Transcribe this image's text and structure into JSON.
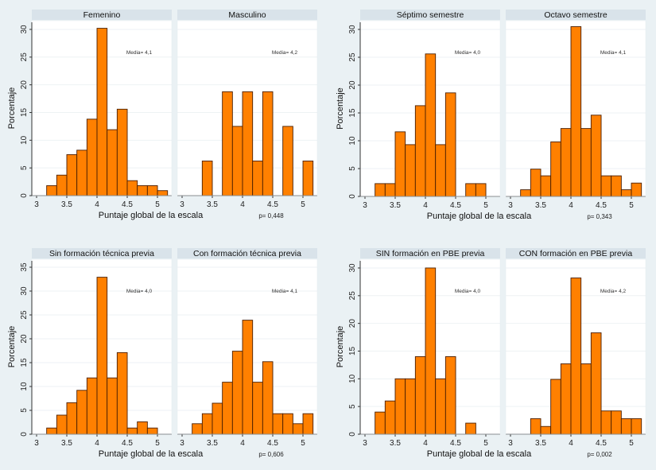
{
  "chart_data": [
    {
      "type": "bar",
      "group": "sexo",
      "ylabel": "Porcentaje",
      "xlabel": "Puntaje global de la escala",
      "ylim": [
        0,
        31
      ],
      "yticks": [
        0,
        5,
        10,
        15,
        20,
        25,
        30
      ],
      "xlim": [
        2.9,
        5.17
      ],
      "xticks": [
        "3",
        "3.5",
        "4",
        "4.5",
        "5"
      ],
      "grid": true,
      "bin_width": 0.1667,
      "p_value_label": "p= 0,448",
      "panels": [
        {
          "title": "Femenino",
          "media_label": "Media= 4,1",
          "bin_start": 3.1667,
          "values": [
            1.8,
            3.7,
            7.4,
            8.2,
            13.8,
            30.2,
            11.9,
            15.6,
            2.7,
            1.8,
            1.8,
            0.9
          ]
        },
        {
          "title": "Masculino",
          "media_label": "Media= 4,2",
          "bin_start": 3.3333,
          "values": [
            6.25,
            0,
            18.75,
            12.5,
            18.75,
            6.25,
            18.75,
            0,
            12.5,
            0,
            6.25
          ]
        }
      ]
    },
    {
      "type": "bar",
      "group": "semestre",
      "ylabel": "Porcentaje",
      "xlabel": "Puntaje global de la escala",
      "ylim": [
        0,
        31
      ],
      "yticks": [
        0,
        5,
        10,
        15,
        20,
        25,
        30
      ],
      "xlim": [
        2.9,
        5.17
      ],
      "xticks": [
        "3",
        "3.5",
        "4",
        "4.5",
        "5"
      ],
      "grid": true,
      "bin_width": 0.1667,
      "p_value_label": "p= 0,343",
      "panels": [
        {
          "title": "Séptimo semestre",
          "media_label": "Media= 4,0",
          "bin_start": 3.1667,
          "values": [
            2.3,
            2.3,
            11.6,
            9.3,
            16.3,
            25.6,
            9.3,
            18.6,
            0,
            2.3,
            2.3
          ]
        },
        {
          "title": "Octavo semestre",
          "media_label": "Media= 4,1",
          "bin_start": 3.1667,
          "values": [
            1.2,
            4.9,
            3.7,
            9.8,
            12.2,
            30.5,
            12.2,
            14.6,
            3.7,
            3.7,
            1.2,
            2.4
          ]
        }
      ]
    },
    {
      "type": "bar",
      "group": "formacion_tecnica",
      "ylabel": "Porcentaje",
      "xlabel": "Puntaje global de la escala",
      "ylim": [
        0,
        36
      ],
      "yticks": [
        0,
        5,
        10,
        15,
        20,
        25,
        30,
        35
      ],
      "xlim": [
        2.9,
        5.17
      ],
      "xticks": [
        "3",
        "3.5",
        "4",
        "4.5",
        "5"
      ],
      "grid": true,
      "bin_width": 0.1667,
      "p_value_label": "p= 0,606",
      "panels": [
        {
          "title": "Sin formación técnica previa",
          "media_label": "Media= 4,0",
          "bin_start": 3.1667,
          "values": [
            1.3,
            4.0,
            6.6,
            9.2,
            11.8,
            32.9,
            11.8,
            17.1,
            1.3,
            2.6,
            1.3
          ]
        },
        {
          "title": "Con formación técnica previa",
          "media_label": "Media= 4,1",
          "bin_start": 3.1667,
          "values": [
            2.2,
            4.3,
            6.5,
            10.9,
            17.4,
            23.9,
            10.9,
            15.2,
            4.3,
            4.3,
            2.2,
            4.3
          ]
        }
      ]
    },
    {
      "type": "bar",
      "group": "formacion_pbe",
      "ylabel": "Porcentaje",
      "xlabel": "Puntaje global de la escala",
      "ylim": [
        0,
        31
      ],
      "yticks": [
        0,
        5,
        10,
        15,
        20,
        25,
        30
      ],
      "xlim": [
        2.9,
        5.17
      ],
      "xticks": [
        "3",
        "3.5",
        "4",
        "4.5",
        "5"
      ],
      "grid": true,
      "bin_width": 0.1667,
      "p_value_label": "p= 0,002",
      "panels": [
        {
          "title": "SIN formación en PBE previa",
          "media_label": "Media= 4,0",
          "bin_start": 3.1667,
          "values": [
            4,
            6,
            10,
            10,
            14,
            30,
            10,
            14,
            0,
            2
          ]
        },
        {
          "title": "CON formación en PBE previa",
          "media_label": "Media= 4,2",
          "bin_start": 3.3333,
          "values": [
            2.8,
            1.4,
            9.9,
            12.7,
            28.2,
            12.7,
            18.3,
            4.2,
            4.2,
            2.8,
            2.8
          ]
        }
      ]
    }
  ]
}
